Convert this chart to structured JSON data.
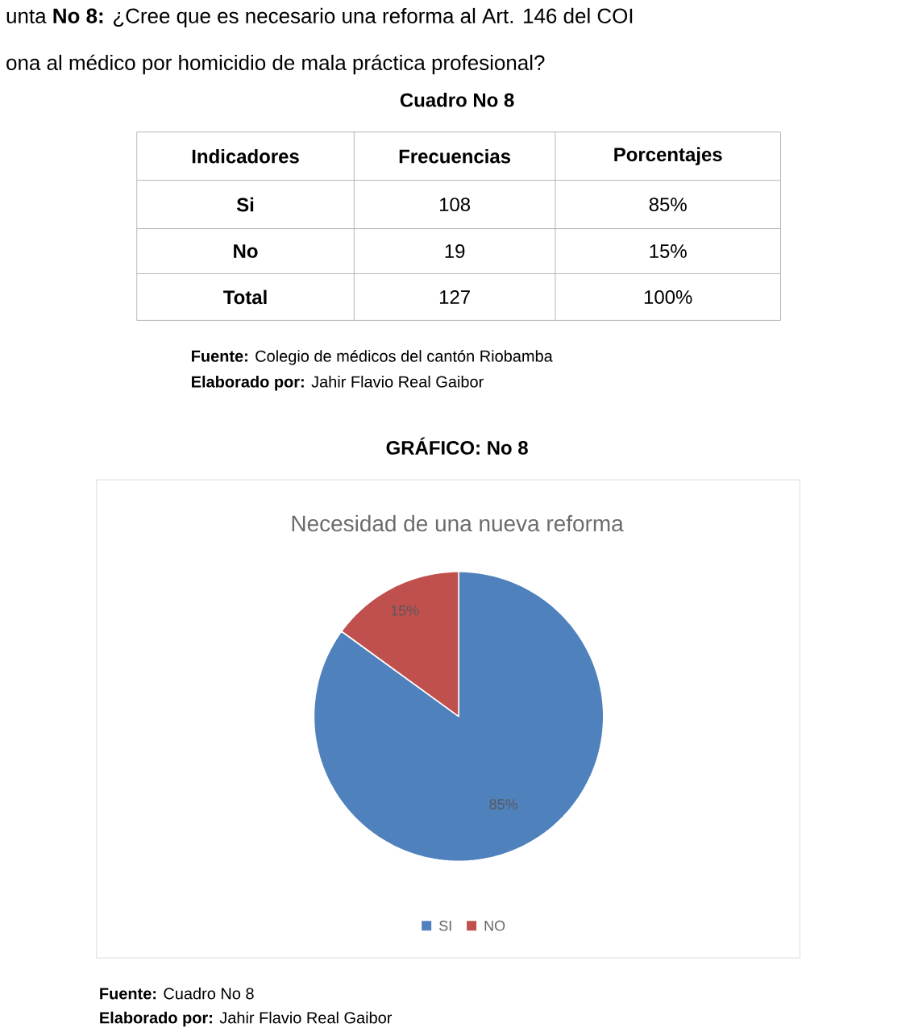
{
  "chart_data": {
    "type": "pie",
    "title": "Necesidad de una nueva reforma",
    "categories": [
      "SI",
      "NO"
    ],
    "values": [
      85,
      15
    ],
    "colors": [
      "#4f81bd",
      "#c0504d"
    ],
    "value_labels": [
      "85%",
      "15%"
    ],
    "legend": "bottom",
    "annotations": [
      "unta **No 8:** ¿Cree que es necesario una reforma al Art. 146 del COI",
      "ona al médico por homicidio de mala práctica profesional?",
      "Cuadro No 8",
      "Indicadores",
      "Frecuencias",
      "Porcentajes",
      "Si",
      "108",
      "85%",
      "No",
      "19",
      "15%",
      "Total",
      "127",
      "100%",
      "**Fuente:** Colegio de médicos del cantón Riobamba",
      "**Elaborado por:** Jahir Flavio Real Gaibor",
      "GRÁFICO: No 8",
      "**Fuente:** Cuadro No 8",
      "**Elaborado por:** Jahir Flavio Real Gaibor"
    ]
  }
}
